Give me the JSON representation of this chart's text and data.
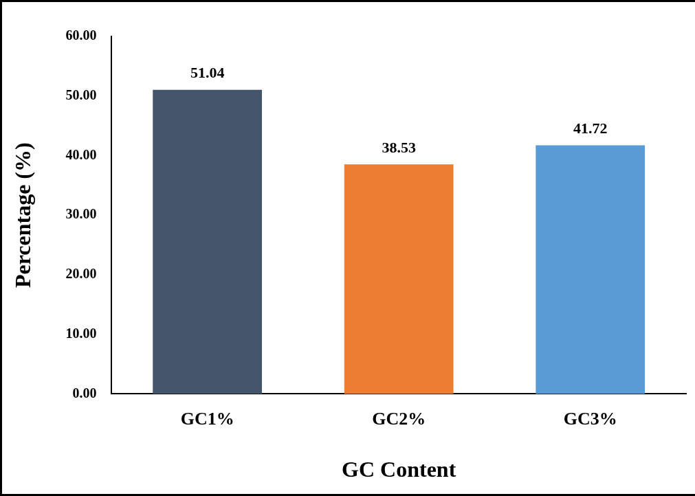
{
  "chart_data": {
    "type": "bar",
    "xlabel": "GC Content",
    "ylabel": "Percentage (%)",
    "categories": [
      "GC1%",
      "GC2%",
      "GC3%"
    ],
    "values": [
      51.04,
      38.53,
      41.72
    ],
    "colors": [
      "#44546a",
      "#ed7d31",
      "#5b9bd5"
    ],
    "ylim": [
      0,
      60
    ],
    "yticks": [
      {
        "value": 0,
        "label": "0.00"
      },
      {
        "value": 10,
        "label": "10.00"
      },
      {
        "value": 20,
        "label": "20.00"
      },
      {
        "value": 30,
        "label": "30.00"
      },
      {
        "value": 40,
        "label": "40.00"
      },
      {
        "value": 50,
        "label": "50.00"
      },
      {
        "value": 60,
        "label": "60.00"
      }
    ],
    "data_labels": true,
    "grid": false,
    "legend": false
  }
}
